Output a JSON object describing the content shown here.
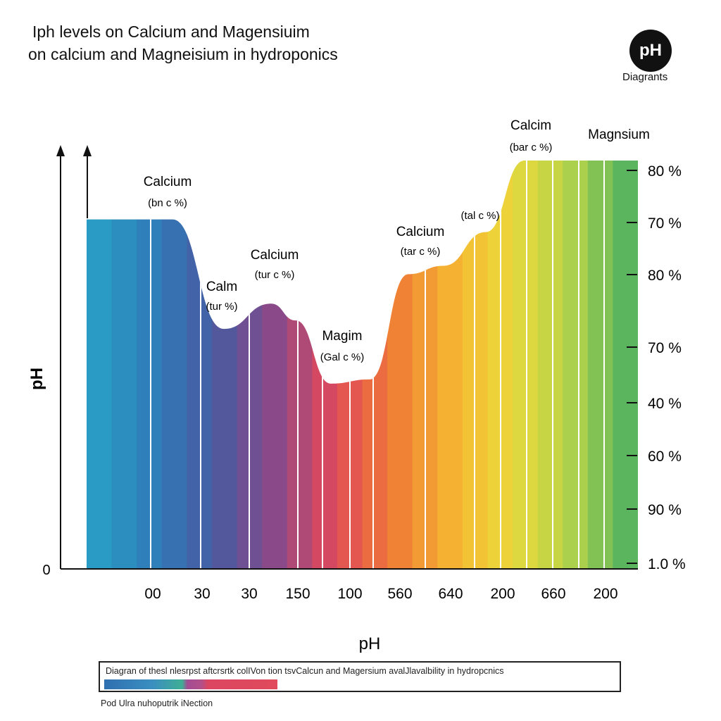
{
  "header": {
    "title_line1": "Iph levels on Calcium and Magensiuim",
    "title_line2": "on calcium and Magneisium in hydroponics",
    "logo_text": "pH",
    "logo_caption": "Diagrants"
  },
  "chart_data": {
    "type": "area",
    "xlabel": "pH",
    "ylabel": "pH",
    "y_origin_label": "0",
    "categories": [
      "00",
      "30",
      "30",
      "150",
      "100",
      "560",
      "640",
      "200",
      "660",
      "200"
    ],
    "levels_fraction_of_axis": [
      0.83,
      0.57,
      0.63,
      0.58,
      0.44,
      0.7,
      0.72,
      0.8,
      0.97,
      0.97
    ],
    "right_axis_labels": [
      "80 %",
      "70 %",
      "80 %",
      "70 %",
      "40 %",
      "60 %",
      "90 %",
      "1.0 %"
    ],
    "annotations": [
      {
        "name": "Calcium",
        "sub": "(bn c %)"
      },
      {
        "name": "Calm",
        "sub": "(tur %)"
      },
      {
        "name": "Calcium",
        "sub": "(tur c %)"
      },
      {
        "name": "Magim",
        "sub": "(Gal c %)"
      },
      {
        "name": "Calcium",
        "sub": "(tar c %)"
      },
      {
        "name": "",
        "sub": "(tal c %)"
      },
      {
        "name": "Calcim",
        "sub": "(bar c %)"
      },
      {
        "name": "Magnsium",
        "sub": ""
      }
    ],
    "colors": [
      "#2a9bc4",
      "#2f7ab8",
      "#4a5aa0",
      "#8a4a8a",
      "#e0485a",
      "#ee7a36",
      "#f5b232",
      "#ecd93a",
      "#b8d44a",
      "#5ab55e"
    ],
    "grid": false
  },
  "legend": {
    "text": "Diagran of thesl nlesrpst aftcrsrtk  colIVon tion tsvCalcun and Magersium avalJlavalbility in hydropcnics"
  },
  "footer": {
    "text": "Pod Ulra nuhoputrik iNection"
  }
}
